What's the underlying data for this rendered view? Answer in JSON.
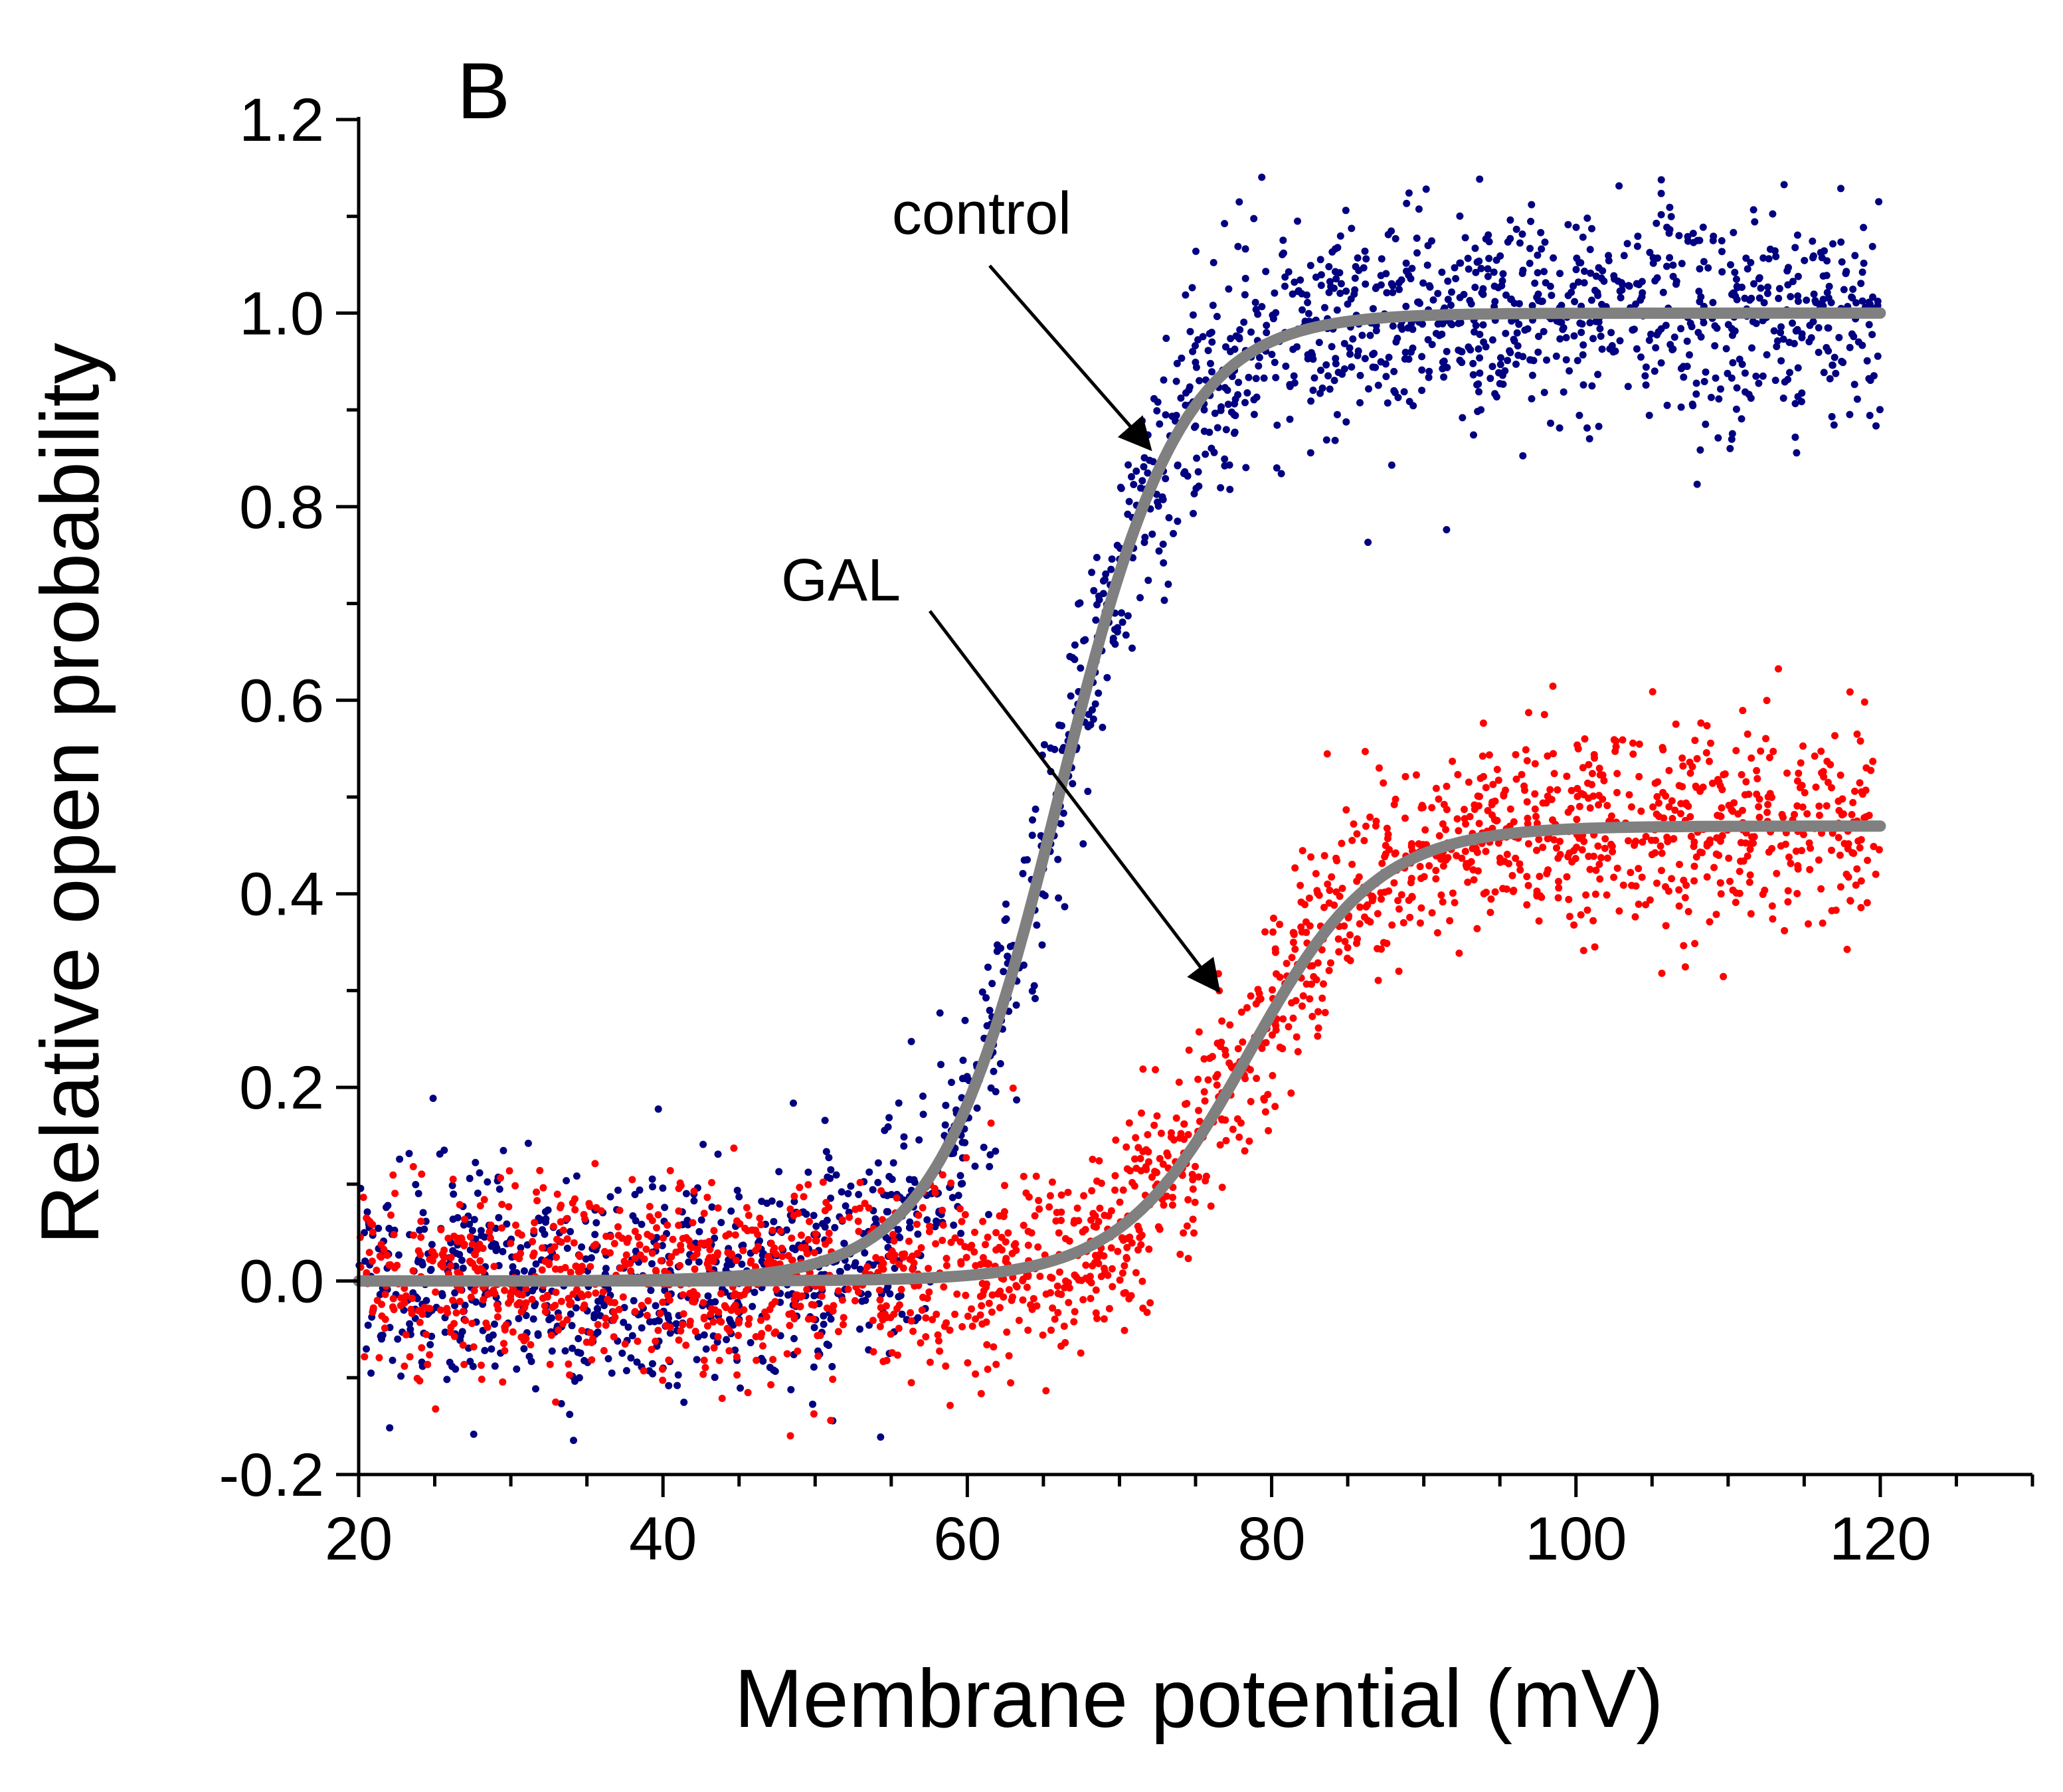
{
  "chart_data": {
    "type": "scatter",
    "panel_label": "B",
    "xlabel": "Membrane potential (mV)",
    "ylabel": "Relative open probability",
    "xlim": [
      20,
      130
    ],
    "ylim": [
      -0.2,
      1.2
    ],
    "x_ticks": [
      20,
      40,
      60,
      80,
      100,
      120
    ],
    "x_tick_labels": [
      "20",
      "40",
      "60",
      "80",
      "100",
      "120"
    ],
    "y_ticks": [
      -0.2,
      0.0,
      0.2,
      0.4,
      0.6,
      0.8,
      1.0,
      1.2
    ],
    "y_tick_labels": [
      "-0.2",
      "0.0",
      "0.2",
      "0.4",
      "0.6",
      "0.8",
      "1.0",
      "1.2"
    ],
    "x_minor_step": 5,
    "y_minor_step": 0.1,
    "grid": false,
    "series": [
      {
        "name": "control",
        "color": "#000080",
        "kind": "scatter",
        "x_range": [
          20,
          120
        ],
        "n_points": 2000,
        "boltzmann": {
          "max": 1.0,
          "v_half": 66,
          "slope": 4.0
        },
        "noise_sd": 0.055
      },
      {
        "name": "GAL",
        "color": "#ff0000",
        "kind": "scatter",
        "x_range": [
          20,
          120
        ],
        "n_points": 2000,
        "boltzmann": {
          "max": 0.47,
          "v_half": 78.5,
          "slope": 4.2
        },
        "noise_sd": 0.05
      }
    ],
    "fit_curves": [
      {
        "name": "control fit",
        "color": "#808080",
        "max": 1.0,
        "v_half": 66,
        "slope": 4.0,
        "x_range": [
          20,
          120
        ]
      },
      {
        "name": "GAL fit",
        "color": "#808080",
        "max": 0.47,
        "v_half": 78.5,
        "slope": 4.2,
        "x_range": [
          20,
          120
        ]
      }
    ],
    "annotations": [
      {
        "text": "control",
        "arrow_to": [
          72,
          0.86
        ]
      },
      {
        "text": "GAL",
        "arrow_to": [
          76.5,
          0.3
        ]
      }
    ]
  }
}
